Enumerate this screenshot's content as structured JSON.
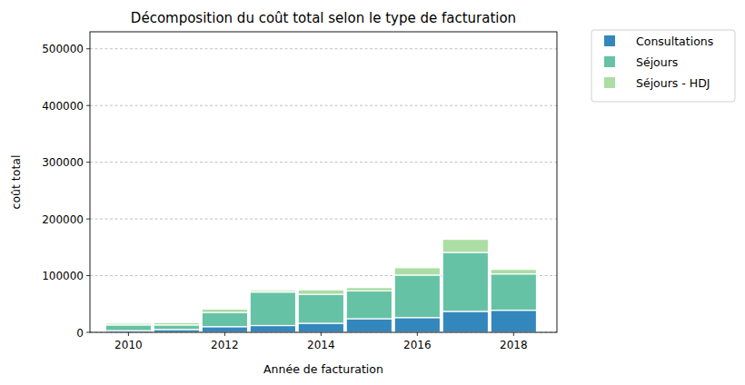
{
  "chart_data": {
    "type": "bar",
    "title": "Décomposition du coût total selon le type de facturation",
    "x_label": "Année de facturation",
    "y_label": "coût total",
    "x": [
      2010,
      2011,
      2012,
      2013,
      2014,
      2015,
      2016,
      2017,
      2018
    ],
    "series": [
      {
        "name": "Consultations",
        "color": "#3487bd",
        "values": [
          3000,
          5000,
          10000,
          12000,
          16000,
          24000,
          26000,
          37000,
          39000
        ]
      },
      {
        "name": "Séjours",
        "color": "#66c2a5",
        "values": [
          10000,
          8000,
          25000,
          59000,
          51000,
          49000,
          75000,
          104000,
          64000
        ]
      },
      {
        "name": "Séjours - HDJ",
        "color": "#abdda4",
        "values": [
          3000,
          4000,
          6000,
          3000,
          8000,
          6000,
          13000,
          23000,
          8000
        ]
      }
    ],
    "stacked": true,
    "xlim": [
      2009.2,
      2018.9
    ],
    "xticks": [
      2010,
      2012,
      2014,
      2016,
      2018
    ],
    "ylim": [
      0,
      530000
    ],
    "yticks": [
      0,
      100000,
      200000,
      300000,
      400000,
      500000
    ],
    "grid": "y",
    "legend": "right"
  }
}
